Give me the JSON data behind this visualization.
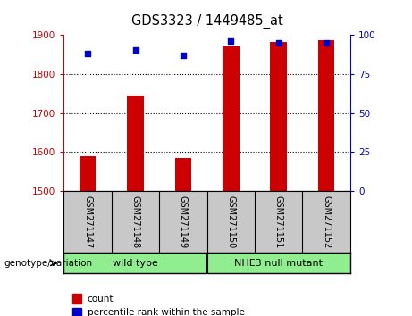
{
  "title": "GDS3323 / 1449485_at",
  "samples": [
    "GSM271147",
    "GSM271148",
    "GSM271149",
    "GSM271150",
    "GSM271151",
    "GSM271152"
  ],
  "counts": [
    1590,
    1745,
    1585,
    1870,
    1882,
    1887
  ],
  "percentile_ranks": [
    88,
    90,
    87,
    96,
    95,
    95
  ],
  "ylim_left": [
    1500,
    1900
  ],
  "ylim_right": [
    0,
    100
  ],
  "yticks_left": [
    1500,
    1600,
    1700,
    1800,
    1900
  ],
  "yticks_right": [
    0,
    25,
    50,
    75,
    100
  ],
  "bar_color": "#cc0000",
  "dot_color": "#0000cc",
  "group1_label": "wild type",
  "group2_label": "NHE3 null mutant",
  "group_color": "#90EE90",
  "group_label_prefix": "genotype/variation",
  "legend_count_label": "count",
  "legend_percentile_label": "percentile rank within the sample",
  "left_axis_color": "#cc0000",
  "right_axis_color": "#0000cc",
  "tick_area_color": "#c8c8c8",
  "bar_width": 0.35
}
